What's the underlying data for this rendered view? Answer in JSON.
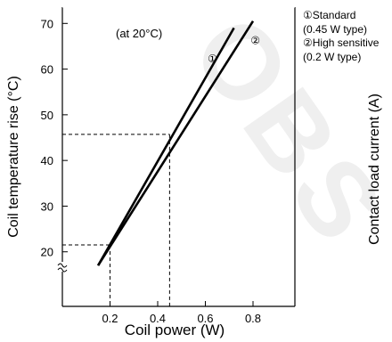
{
  "watermark": "OBS",
  "chart_data": {
    "type": "line",
    "xlabel": "Coil power (W)",
    "ylabel": "Coil temperature rise (°C)",
    "right_ylabel": "Contact load current (A)",
    "annotation": "(at 20°C)",
    "xlim": [
      0,
      0.9
    ],
    "ylim": [
      13,
      73
    ],
    "x_ticks": [
      "0.2",
      "0.4",
      "0.6",
      "0.8"
    ],
    "x_tick_values": [
      0.2,
      0.4,
      0.6,
      0.8
    ],
    "y_ticks": [
      "20",
      "30",
      "40",
      "50",
      "60",
      "70"
    ],
    "y_tick_values": [
      20,
      30,
      40,
      50,
      60,
      70
    ],
    "axis_break": true,
    "grid": false,
    "legend_entries": [
      {
        "marker": "①",
        "lines": [
          "①Standard",
          "(0.45 W type)"
        ]
      },
      {
        "marker": "②",
        "lines": [
          "②High sensitive",
          "(0.2 W type)"
        ]
      }
    ],
    "series": [
      {
        "marker": "①",
        "x": [
          0.15,
          0.72
        ],
        "y": [
          17,
          69
        ]
      },
      {
        "marker": "②",
        "x": [
          0.15,
          0.8
        ],
        "y": [
          17,
          70.5
        ]
      }
    ],
    "reference_points": [
      {
        "x": 0.2,
        "y": 21.5
      },
      {
        "x": 0.45,
        "y": 45.7
      }
    ]
  }
}
